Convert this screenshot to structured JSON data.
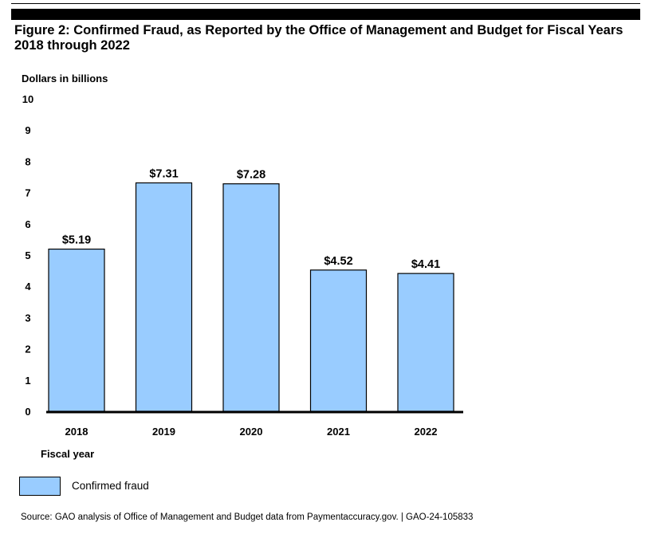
{
  "figure": {
    "title": "Figure 2: Confirmed Fraud, as Reported by the Office of Management and Budget for Fiscal Years 2018 through 2022",
    "source": "Source: GAO analysis of Office of Management and Budget data from Paymentaccuracy.gov.  |  GAO-24-105833"
  },
  "colors": {
    "bar_fill": "#99ccff",
    "bar_stroke": "#000000",
    "axis": "#000000"
  },
  "chart_data": {
    "type": "bar",
    "title": "Figure 2: Confirmed Fraud, as Reported by the Office of Management and Budget for Fiscal Years 2018 through 2022",
    "ylabel": "Dollars in billions",
    "xlabel": "Fiscal year",
    "categories": [
      "2018",
      "2019",
      "2020",
      "2021",
      "2022"
    ],
    "series": [
      {
        "name": "Confirmed fraud",
        "values": [
          5.19,
          7.31,
          7.28,
          4.52,
          4.41
        ]
      }
    ],
    "data_labels": [
      "$5.19",
      "$7.31",
      "$7.28",
      "$4.52",
      "$4.41"
    ],
    "ylim": [
      0,
      10
    ],
    "yticks": [
      0,
      1,
      2,
      3,
      4,
      5,
      6,
      7,
      8,
      9,
      10
    ],
    "grid": false,
    "legend": {
      "position": "bottom-left",
      "entries": [
        "Confirmed fraud"
      ]
    }
  }
}
